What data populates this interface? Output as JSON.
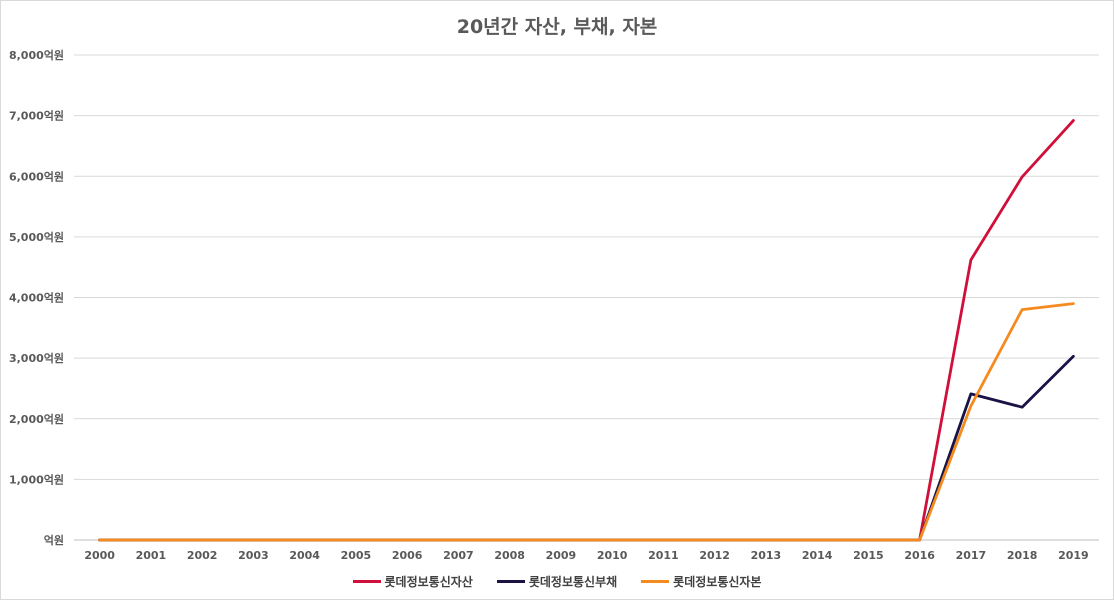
{
  "chart_data": {
    "type": "line",
    "title": "20년간 자산, 부채, 자본",
    "x": [
      "2000",
      "2001",
      "2002",
      "2003",
      "2004",
      "2005",
      "2006",
      "2007",
      "2008",
      "2009",
      "2010",
      "2011",
      "2012",
      "2013",
      "2014",
      "2015",
      "2016",
      "2017",
      "2018",
      "2019"
    ],
    "yticks": [
      "억원",
      "1,000억원",
      "2,000억원",
      "3,000억원",
      "4,000억원",
      "5,000억원",
      "6,000억원",
      "7,000억원",
      "8,000억원"
    ],
    "ylim": [
      0,
      8000
    ],
    "grid": true,
    "legend_position": "bottom",
    "series": [
      {
        "name": "롯데정보통신자산",
        "color": "#d0103a",
        "values": [
          0,
          0,
          0,
          0,
          0,
          0,
          0,
          0,
          0,
          0,
          0,
          0,
          0,
          0,
          0,
          0,
          0,
          4620,
          5990,
          6920
        ]
      },
      {
        "name": "롯데정보통신부채",
        "color": "#1a1446",
        "values": [
          0,
          0,
          0,
          0,
          0,
          0,
          0,
          0,
          0,
          0,
          0,
          0,
          0,
          0,
          0,
          0,
          0,
          2410,
          2190,
          3030
        ]
      },
      {
        "name": "롯데정보통신자본",
        "color": "#f58a1f",
        "values": [
          0,
          0,
          0,
          0,
          0,
          0,
          0,
          0,
          0,
          0,
          0,
          0,
          0,
          0,
          0,
          0,
          0,
          2210,
          3800,
          3900
        ]
      }
    ]
  }
}
